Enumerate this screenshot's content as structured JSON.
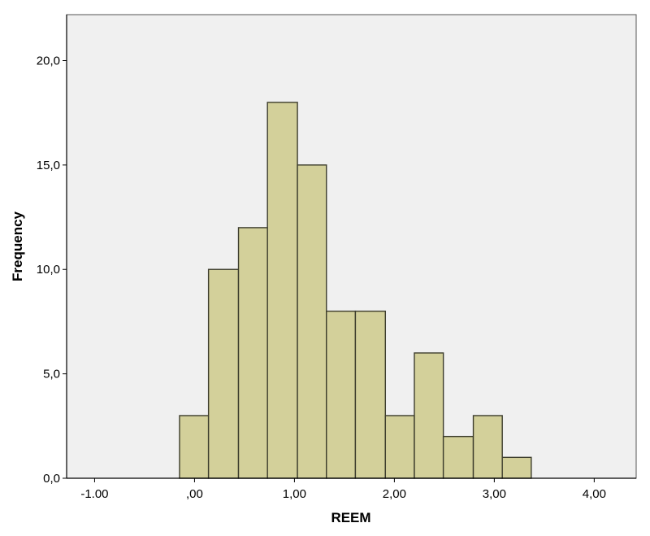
{
  "chart_data": {
    "type": "bar",
    "subtype": "histogram",
    "title": "",
    "xlabel": "REEM",
    "ylabel": "Frequency",
    "x_ticks": [
      {
        "value": -1,
        "label": "-1.00"
      },
      {
        "value": 0,
        "label": ",00"
      },
      {
        "value": 1,
        "label": "1,00"
      },
      {
        "value": 2,
        "label": "2,00"
      },
      {
        "value": 3,
        "label": "3,00"
      },
      {
        "value": 4,
        "label": "4,00"
      }
    ],
    "y_ticks": [
      {
        "value": 0,
        "label": "0,0"
      },
      {
        "value": 5,
        "label": "5,0"
      },
      {
        "value": 10,
        "label": "10,0"
      },
      {
        "value": 15,
        "label": "15,0"
      },
      {
        "value": 20,
        "label": "20,0"
      }
    ],
    "xlim": [
      -1.28,
      4.42
    ],
    "ylim": [
      0,
      22.2
    ],
    "bins": [
      {
        "start": -0.15,
        "end": 0.14,
        "count": 3
      },
      {
        "start": 0.14,
        "end": 0.44,
        "count": 10
      },
      {
        "start": 0.44,
        "end": 0.73,
        "count": 12
      },
      {
        "start": 0.73,
        "end": 1.03,
        "count": 18
      },
      {
        "start": 1.03,
        "end": 1.32,
        "count": 15
      },
      {
        "start": 1.32,
        "end": 1.61,
        "count": 8
      },
      {
        "start": 1.61,
        "end": 1.91,
        "count": 8
      },
      {
        "start": 1.91,
        "end": 2.2,
        "count": 3
      },
      {
        "start": 2.2,
        "end": 2.49,
        "count": 6
      },
      {
        "start": 2.49,
        "end": 2.79,
        "count": 2
      },
      {
        "start": 2.79,
        "end": 3.08,
        "count": 3
      },
      {
        "start": 3.08,
        "end": 3.37,
        "count": 1
      }
    ],
    "grid": false,
    "legend": "none",
    "colors": {
      "bar_fill": "#d3d09a",
      "bar_stroke": "#3d3d2d",
      "plot_background": "#f0f0f0",
      "frame": "#555555"
    }
  }
}
